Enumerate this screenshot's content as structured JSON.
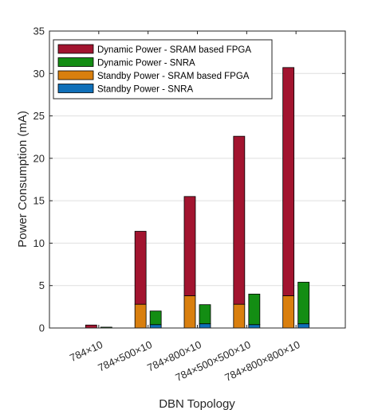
{
  "chart_data": {
    "type": "bar",
    "stacked": true,
    "grouped": true,
    "xlabel": "DBN Topology",
    "ylabel": "Power Consumption (mA)",
    "ylim": [
      0,
      35
    ],
    "yticks": [
      0,
      5,
      10,
      15,
      20,
      25,
      30,
      35
    ],
    "grid": "horizontal",
    "legend_position": "top-left",
    "categories": [
      "784×10",
      "784×500×10",
      "784×800×10",
      "784×500×500×10",
      "784×800×800×10"
    ],
    "groups": [
      {
        "name": "SRAM based FPGA",
        "stack": [
          {
            "series": "Standby Power - SRAM based FPGA",
            "values": [
              0.0,
              2.8,
              3.8,
              2.8,
              3.8
            ]
          },
          {
            "series": "Dynamic Power - SRAM based FPGA",
            "values": [
              0.35,
              8.6,
              11.7,
              19.8,
              26.9
            ]
          }
        ]
      },
      {
        "name": "SNRA",
        "stack": [
          {
            "series": "Standby Power - SNRA",
            "values": [
              0.0,
              0.4,
              0.5,
              0.4,
              0.5
            ]
          },
          {
            "series": "Dynamic Power - SNRA",
            "values": [
              0.1,
              1.6,
              2.25,
              3.6,
              4.9
            ]
          }
        ]
      }
    ],
    "legend": [
      {
        "label": "Dynamic Power - SRAM based FPGA",
        "color": "#a2142f"
      },
      {
        "label": "Dynamic Power - SNRA",
        "color": "#138d13"
      },
      {
        "label": "Standby Power - SRAM based FPGA",
        "color": "#d97f0e"
      },
      {
        "label": "Standby Power - SNRA",
        "color": "#0f6fb8"
      }
    ],
    "colors": {
      "Dynamic Power - SRAM based FPGA": "#a2142f",
      "Dynamic Power - SNRA": "#138d13",
      "Standby Power - SRAM based FPGA": "#d97f0e",
      "Standby Power - SNRA": "#0f6fb8"
    }
  }
}
